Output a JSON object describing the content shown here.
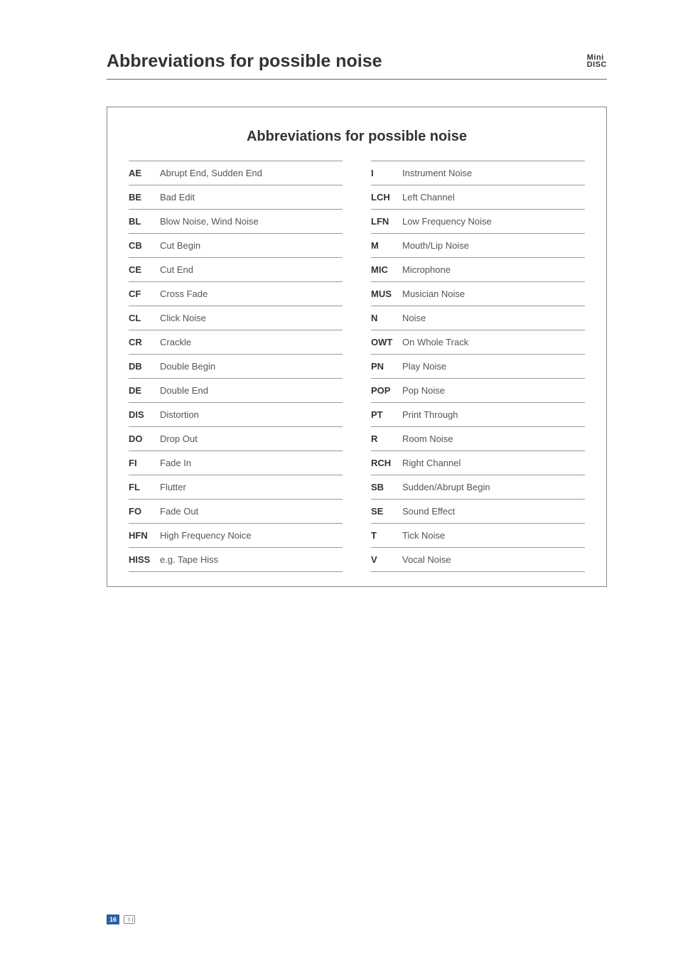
{
  "header": {
    "title": "Abbreviations for possible noise",
    "logo_line1": "Mini",
    "logo_line2": "DISC"
  },
  "frame": {
    "title": "Abbreviations for possible noise",
    "left": [
      {
        "abbr": "AE",
        "desc": "Abrupt End, Sudden End"
      },
      {
        "abbr": "BE",
        "desc": "Bad Edit"
      },
      {
        "abbr": "BL",
        "desc": "Blow Noise, Wind Noise"
      },
      {
        "abbr": "CB",
        "desc": "Cut Begin"
      },
      {
        "abbr": "CE",
        "desc": "Cut End"
      },
      {
        "abbr": "CF",
        "desc": "Cross Fade"
      },
      {
        "abbr": "CL",
        "desc": "Click Noise"
      },
      {
        "abbr": "CR",
        "desc": "Crackle"
      },
      {
        "abbr": "DB",
        "desc": "Double Begin"
      },
      {
        "abbr": "DE",
        "desc": "Double End"
      },
      {
        "abbr": "DIS",
        "desc": "Distortion"
      },
      {
        "abbr": "DO",
        "desc": "Drop Out"
      },
      {
        "abbr": "FI",
        "desc": "Fade In"
      },
      {
        "abbr": "FL",
        "desc": "Flutter"
      },
      {
        "abbr": "FO",
        "desc": "Fade Out"
      },
      {
        "abbr": "HFN",
        "desc": "High Frequency Noice"
      },
      {
        "abbr": "HISS",
        "desc": "e.g. Tape Hiss"
      }
    ],
    "right": [
      {
        "abbr": "I",
        "desc": "Instrument Noise"
      },
      {
        "abbr": "LCH",
        "desc": "Left Channel"
      },
      {
        "abbr": "LFN",
        "desc": "Low Frequency Noise"
      },
      {
        "abbr": "M",
        "desc": "Mouth/Lip Noise"
      },
      {
        "abbr": "MIC",
        "desc": "Microphone"
      },
      {
        "abbr": "MUS",
        "desc": "Musician Noise"
      },
      {
        "abbr": "N",
        "desc": "Noise"
      },
      {
        "abbr": "OWT",
        "desc": "On Whole Track"
      },
      {
        "abbr": "PN",
        "desc": "Play Noise"
      },
      {
        "abbr": "POP",
        "desc": "Pop Noise"
      },
      {
        "abbr": "PT",
        "desc": "Print Through"
      },
      {
        "abbr": "R",
        "desc": "Room Noise"
      },
      {
        "abbr": "RCH",
        "desc": "Right Channel"
      },
      {
        "abbr": "SB",
        "desc": "Sudden/Abrupt Begin"
      },
      {
        "abbr": "SE",
        "desc": "Sound Effect"
      },
      {
        "abbr": "T",
        "desc": "Tick Noise"
      },
      {
        "abbr": "V",
        "desc": "Vocal Noise"
      }
    ]
  },
  "footer": {
    "page_number": "16"
  }
}
